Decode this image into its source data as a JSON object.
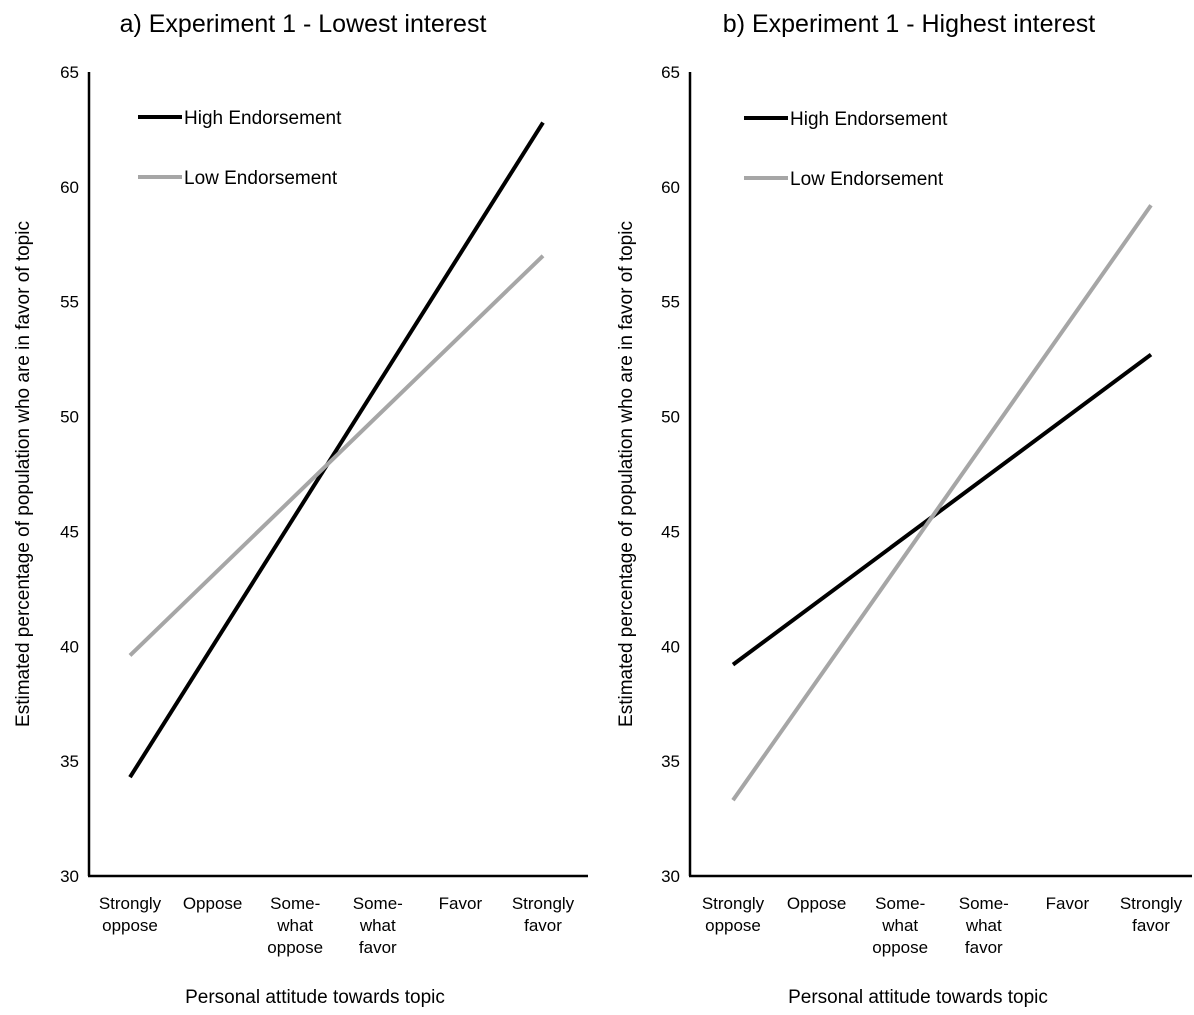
{
  "colors": {
    "high": "#000000",
    "low": "#a6a6a6"
  },
  "chart_data": [
    {
      "type": "line",
      "title": "a) Experiment 1 - Lowest interest",
      "xlabel": "Personal attitude towards topic",
      "ylabel": "Estimated percentage of population who are in favor of topic",
      "ylim": [
        30,
        65
      ],
      "yticks": [
        "30",
        "35",
        "40",
        "45",
        "50",
        "55",
        "60",
        "65"
      ],
      "categories": [
        [
          "Strongly",
          "oppose"
        ],
        [
          "Oppose"
        ],
        [
          "Some-",
          "what",
          "oppose"
        ],
        [
          "Some-",
          "what",
          "favor"
        ],
        [
          "Favor"
        ],
        [
          "Strongly",
          "favor"
        ]
      ],
      "legend_position": "top-left",
      "grid": false,
      "series": [
        {
          "name": "High Endorsement",
          "color": "#000000",
          "start": 34.3,
          "end": 62.8
        },
        {
          "name": "Low Endorsement",
          "color": "#a6a6a6",
          "start": 39.6,
          "end": 57.0
        }
      ]
    },
    {
      "type": "line",
      "title": "b) Experiment 1 - Highest interest",
      "xlabel": "Personal attitude towards topic",
      "ylabel": "Estimated percentage of population who are in favor of topic",
      "ylim": [
        30,
        65
      ],
      "yticks": [
        "30",
        "35",
        "40",
        "45",
        "50",
        "55",
        "60",
        "65"
      ],
      "categories": [
        [
          "Strongly",
          "oppose"
        ],
        [
          "Oppose"
        ],
        [
          "Some-",
          "what",
          "oppose"
        ],
        [
          "Some-",
          "what",
          "favor"
        ],
        [
          "Favor"
        ],
        [
          "Strongly",
          "favor"
        ]
      ],
      "legend_position": "top-left",
      "grid": false,
      "series": [
        {
          "name": "High Endorsement",
          "color": "#000000",
          "start": 39.2,
          "end": 52.7
        },
        {
          "name": "Low Endorsement",
          "color": "#a6a6a6",
          "start": 33.3,
          "end": 59.2
        }
      ]
    }
  ]
}
